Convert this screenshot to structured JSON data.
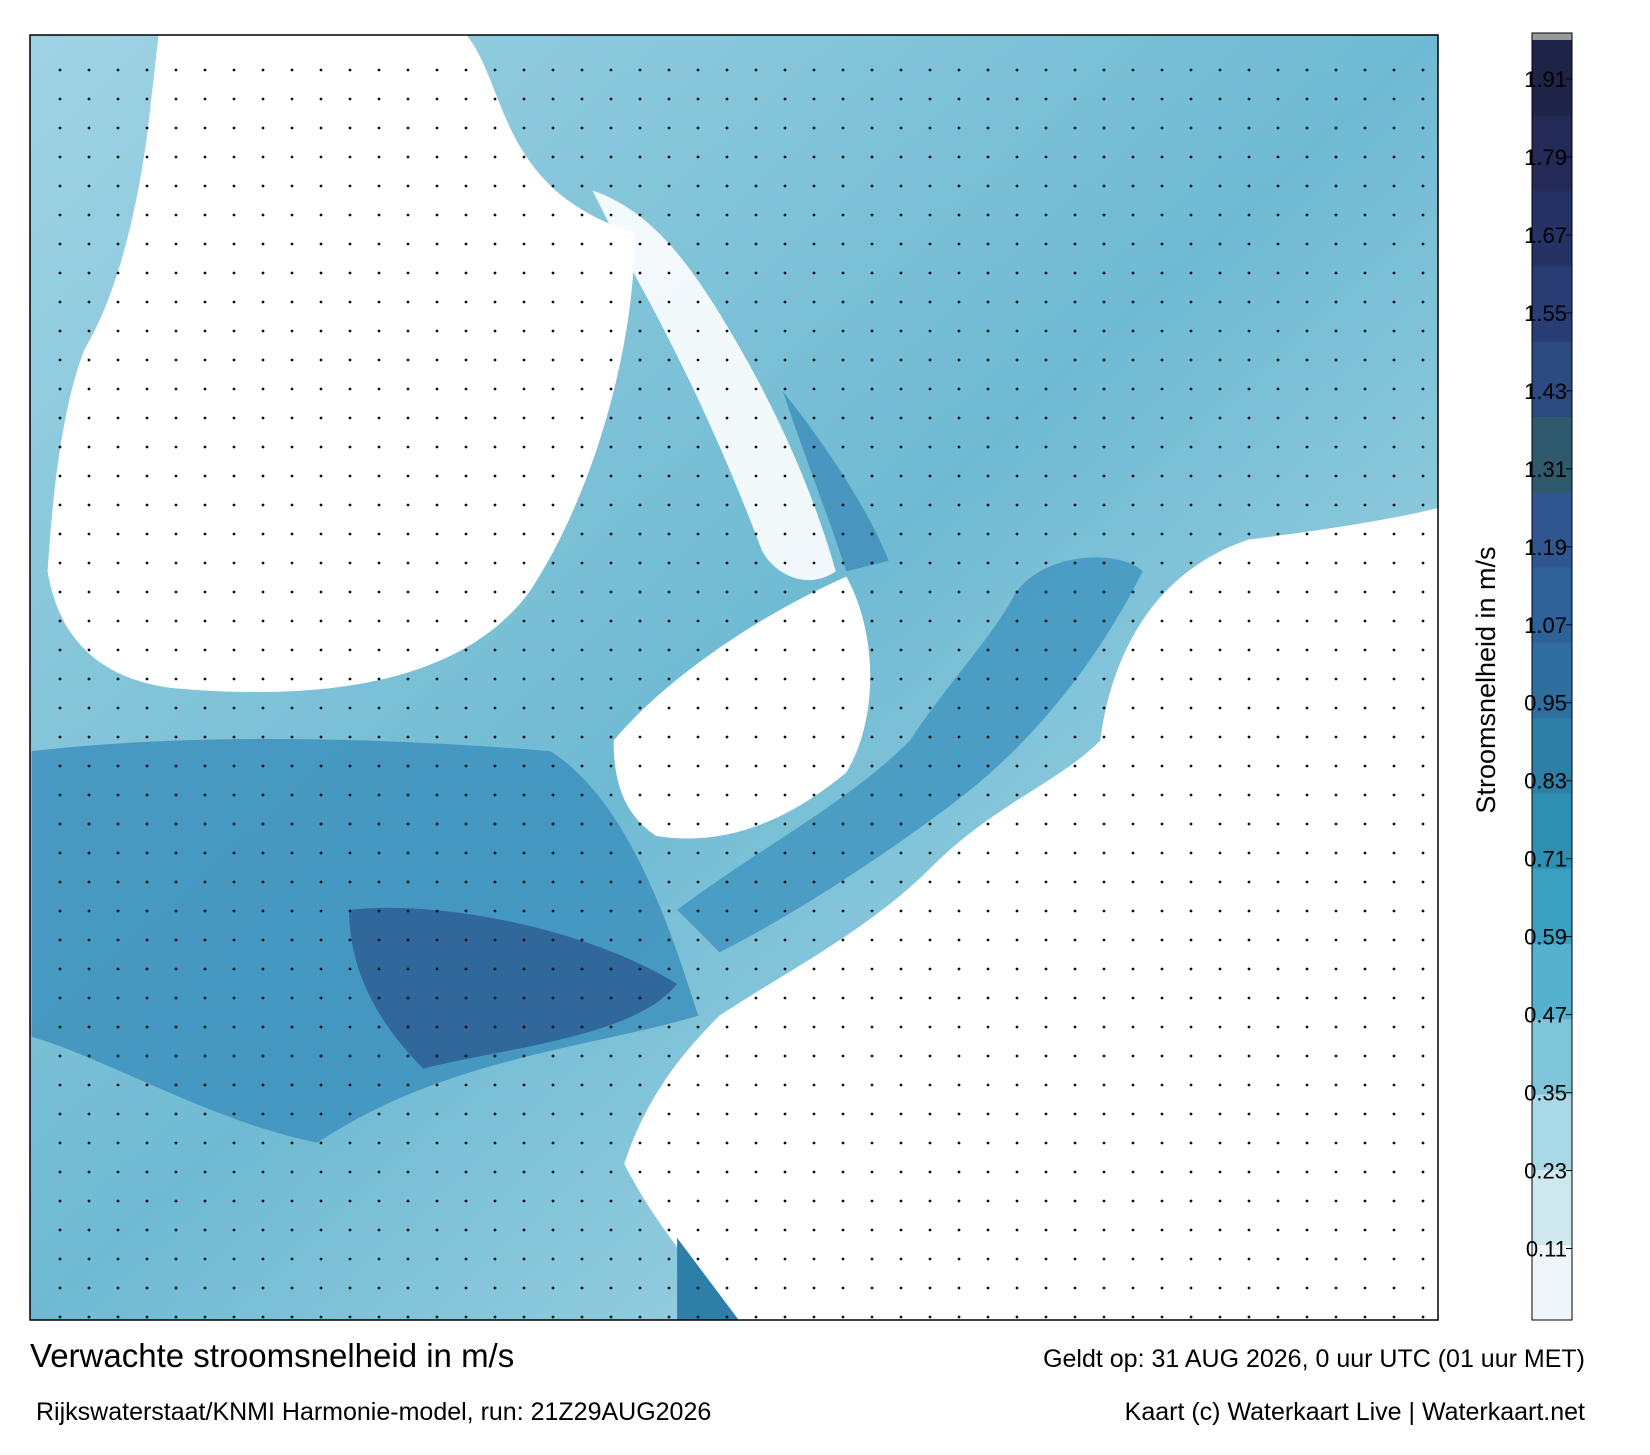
{
  "title": "Verwachte stroomsnelheid in m/s",
  "subtitle": "Rijkswaterstaat/KNMI Harmonie-model, run: 21Z29AUG2026",
  "valid_time": "Geldt op: 31 AUG 2026, 0 uur UTC (01 uur MET)",
  "credit": "Kaart (c) Waterkaart Live | Waterkaart.net",
  "colorbar": {
    "label": "Stroomsnelheid in m/s",
    "lim": [
      0,
      1.97
    ],
    "ticks": [
      0.11,
      0.23,
      0.35,
      0.47,
      0.59,
      0.71,
      0.83,
      0.95,
      1.07,
      1.19,
      1.31,
      1.43,
      1.55,
      1.67,
      1.79,
      1.91
    ],
    "colors": [
      "#eef6f9",
      "#cfe8f0",
      "#a9d8e6",
      "#7fc5da",
      "#55b1cd",
      "#3a9fc0",
      "#2f8fb3",
      "#2e7fa8",
      "#2e6fa0",
      "#2f6199",
      "#305690",
      "#2f5a6e",
      "#2c4a80",
      "#293d74",
      "#273264",
      "#232a55",
      "#1e2447"
    ]
  }
}
